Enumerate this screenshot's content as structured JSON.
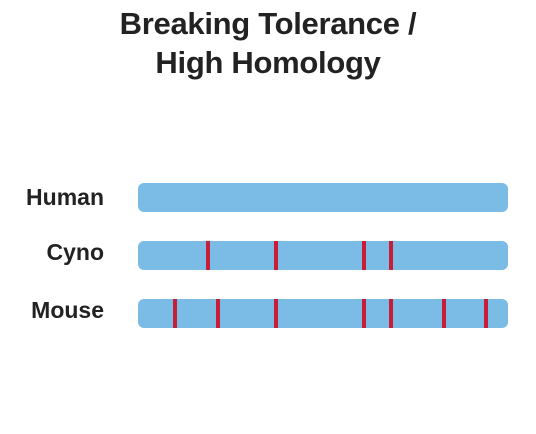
{
  "title": {
    "line1": "Breaking Tolerance /",
    "line2": "High Homology"
  },
  "colors": {
    "bar": "#7bbce6",
    "mismatch": "#c81d38",
    "text": "#222222"
  },
  "sequences": [
    {
      "label": "Human",
      "mismatches": []
    },
    {
      "label": "Cyno",
      "mismatches": [
        0.188,
        0.373,
        0.61,
        0.685
      ]
    },
    {
      "label": "Mouse",
      "mismatches": [
        0.1,
        0.217,
        0.373,
        0.61,
        0.685,
        0.827,
        0.94
      ]
    }
  ]
}
